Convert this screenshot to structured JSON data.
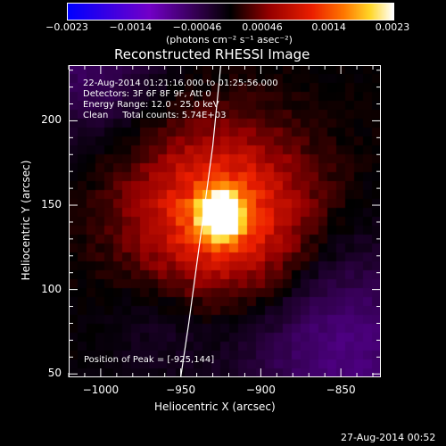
{
  "chart_data": {
    "type": "heatmap",
    "title": "Reconstructed RHESSI Image",
    "xlabel": "Heliocentric X (arcsec)",
    "ylabel": "Heliocentric Y (arcsec)",
    "xlim": [
      -1020,
      -825
    ],
    "ylim": [
      48,
      233
    ],
    "x_ticks": [
      -1000,
      -950,
      -900,
      -850
    ],
    "x_tick_labels": [
      "−1000",
      "−950",
      "−900",
      "−850"
    ],
    "y_ticks": [
      50,
      100,
      150,
      200
    ],
    "y_tick_labels": [
      "50",
      "100",
      "150",
      "200"
    ],
    "colorbar": {
      "ticks": [
        -0.0023,
        -0.0014,
        -0.00046,
        0.00046,
        0.0014,
        0.0023
      ],
      "tick_labels": [
        "−0.0023",
        "−0.0014",
        "−0.00046",
        "0.00046",
        "0.0014",
        "0.0023"
      ],
      "units_label": "(photons cm⁻² s⁻¹ asec⁻²)",
      "range": [
        -0.0023,
        0.0023
      ]
    },
    "peak": {
      "x": -925,
      "y": 144,
      "value": 0.0023
    },
    "annotations": {
      "time_range": "22-Aug-2014 01:21:16.000 to 01:25:56.000",
      "detectors": "Detectors: 3F 6F 8F 9F, Att 0",
      "energy": "Energy Range: 12.0 - 25.0 keV",
      "clean": "Clean     Total counts: 5.74E+03",
      "peak_text": "Position of Peak = [-925,144]"
    },
    "limb_curve": [
      [
        -950,
        48
      ],
      [
        -945,
        80
      ],
      [
        -940,
        115
      ],
      [
        -935,
        150
      ],
      [
        -930,
        185
      ],
      [
        -925,
        233
      ]
    ],
    "grid": false
  },
  "footer": {
    "date": "27-Aug-2014 00:52"
  }
}
